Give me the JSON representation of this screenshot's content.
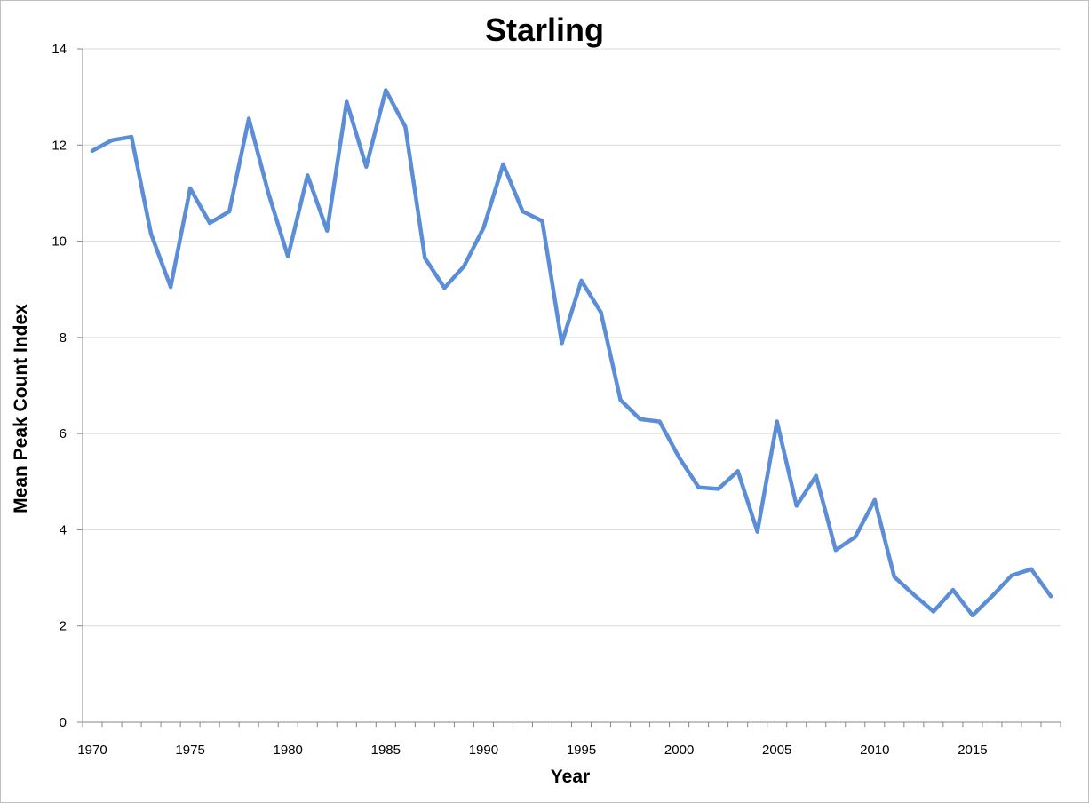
{
  "chart_data": {
    "type": "line",
    "title": "Starling",
    "xlabel": "Year",
    "ylabel": "Mean Peak Count Index",
    "xlim": [
      1970,
      2019
    ],
    "ylim": [
      0,
      14
    ],
    "y_ticks": [
      0,
      2,
      4,
      6,
      8,
      10,
      12,
      14
    ],
    "x_tick_labels": [
      "1970",
      "1975",
      "1980",
      "1985",
      "1990",
      "1995",
      "2000",
      "2005",
      "2010",
      "2015"
    ],
    "grid": "horizontal",
    "legend": "none",
    "line_color": "#5B8ED6",
    "series": [
      {
        "x": [
          1970,
          1971,
          1972,
          1973,
          1974,
          1975,
          1976,
          1977,
          1978,
          1979,
          1980,
          1981,
          1982,
          1983,
          1984,
          1985,
          1986,
          1987,
          1988,
          1989,
          1990,
          1991,
          1992,
          1993,
          1994,
          1995,
          1996,
          1997,
          1998,
          1999,
          2000,
          2001,
          2002,
          2003,
          2004,
          2005,
          2006,
          2007,
          2008,
          2009,
          2010,
          2011,
          2012,
          2013,
          2014,
          2015,
          2016,
          2017,
          2018,
          2019
        ],
        "values": [
          11.88,
          12.1,
          12.17,
          10.15,
          9.05,
          11.1,
          10.38,
          10.62,
          12.55,
          11.0,
          9.68,
          11.37,
          10.22,
          12.9,
          11.55,
          13.14,
          12.38,
          9.65,
          9.03,
          9.48,
          10.28,
          11.6,
          10.62,
          10.42,
          7.88,
          9.18,
          8.52,
          6.7,
          6.3,
          6.25,
          5.5,
          4.88,
          4.85,
          5.22,
          3.96,
          6.25,
          4.5,
          5.12,
          3.58,
          3.85,
          4.62,
          3.02,
          2.65,
          2.3,
          2.75,
          2.22,
          2.62,
          3.05,
          3.18,
          2.62
        ]
      }
    ]
  }
}
